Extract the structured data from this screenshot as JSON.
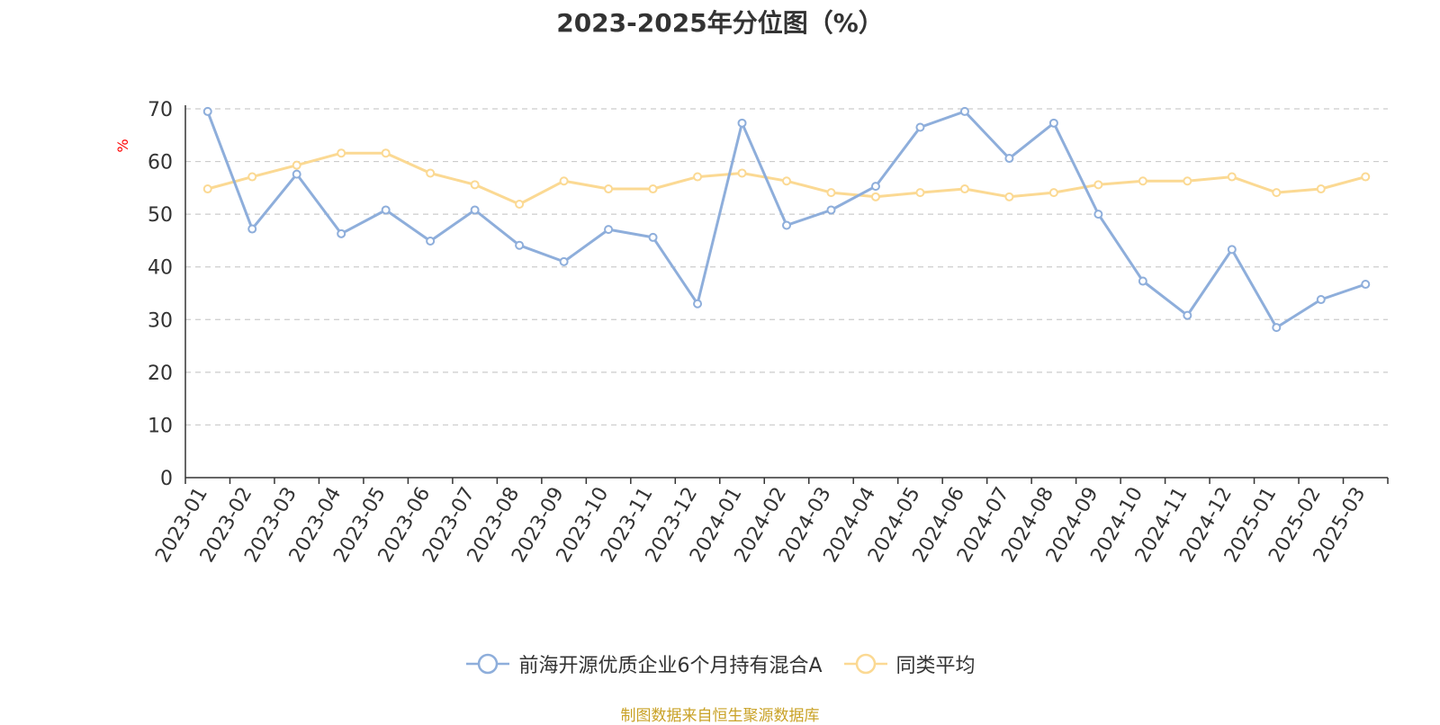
{
  "chart_data": {
    "type": "line",
    "title": "2023-2025年分位图（%）",
    "ylabel": "%",
    "ylim": [
      0,
      70
    ],
    "yticks": [
      0,
      10,
      20,
      30,
      40,
      50,
      60,
      70
    ],
    "grid": true,
    "legend_position": "bottom",
    "categories": [
      "2023-01",
      "2023-02",
      "2023-03",
      "2023-04",
      "2023-05",
      "2023-06",
      "2023-07",
      "2023-08",
      "2023-09",
      "2023-10",
      "2023-11",
      "2023-12",
      "2024-01",
      "2024-02",
      "2024-03",
      "2024-04",
      "2024-05",
      "2024-06",
      "2024-07",
      "2024-08",
      "2024-09",
      "2024-10",
      "2024-11",
      "2024-12",
      "2025-01",
      "2025-02",
      "2025-03"
    ],
    "series": [
      {
        "name": "前海开源优质企业6个月持有混合A",
        "color": "#8eaedb",
        "values": [
          69.5,
          47.2,
          57.6,
          46.3,
          50.8,
          44.9,
          50.8,
          44.1,
          41.0,
          47.1,
          45.6,
          33.0,
          67.3,
          47.9,
          50.8,
          55.3,
          66.5,
          69.5,
          60.6,
          67.3,
          50.0,
          37.3,
          30.8,
          43.3,
          28.5,
          33.8,
          36.7
        ]
      },
      {
        "name": "同类平均",
        "color": "#fbd993",
        "values": [
          54.8,
          57.1,
          59.3,
          61.6,
          61.6,
          57.8,
          55.6,
          51.9,
          56.3,
          54.8,
          54.8,
          57.1,
          57.8,
          56.3,
          54.1,
          53.3,
          54.1,
          54.8,
          53.3,
          54.1,
          55.6,
          56.3,
          56.3,
          57.1,
          54.1,
          54.8,
          57.1
        ]
      }
    ]
  },
  "source_note": "制图数据来自恒生聚源数据库",
  "colors": {
    "axis": "#333333",
    "grid": "#cccccc",
    "ylabel": "#ff0000",
    "source": "#c9a227"
  }
}
